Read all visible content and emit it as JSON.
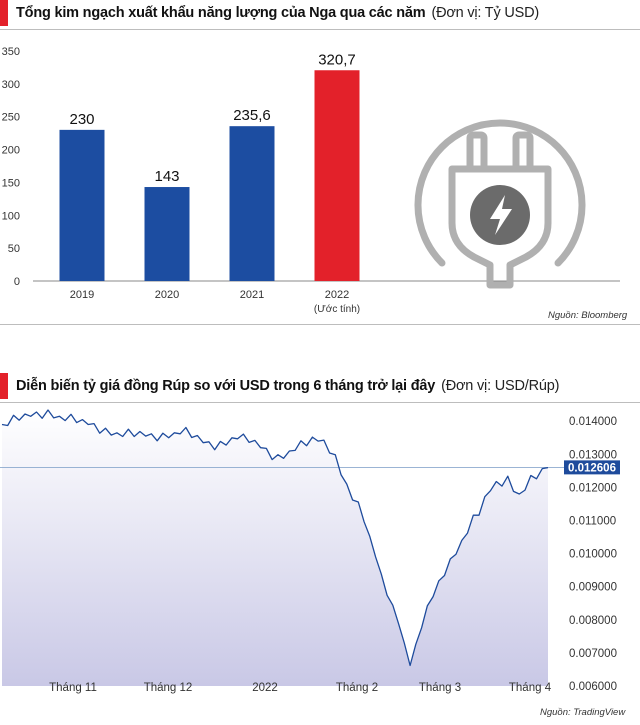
{
  "chart_data": [
    {
      "type": "bar",
      "title": "Tổng kim ngạch xuất khẩu năng lượng của Nga qua các năm",
      "unit": "(Đơn vị: Tỷ USD)",
      "categories": [
        "2019",
        "2020",
        "2021",
        "2022"
      ],
      "category_notes": [
        "",
        "",
        "",
        "(Ước tính)"
      ],
      "values": [
        230,
        143,
        235.6,
        320.7
      ],
      "value_labels": [
        "230",
        "143",
        "235,6",
        "320,7"
      ],
      "yticks": [
        "0",
        "50",
        "100",
        "150",
        "200",
        "250",
        "300",
        "350"
      ],
      "ylim": [
        0,
        350
      ],
      "grid": false,
      "colors": [
        "#1c4da1",
        "#1c4da1",
        "#1c4da1",
        "#e3212a"
      ],
      "source": "Nguồn: Bloomberg",
      "icon": "power-plug-icon"
    },
    {
      "type": "area",
      "title": "Diễn biến tỷ giá đồng Rúp so với USD trong 6 tháng trở lại đây",
      "unit": "(Đơn vị: USD/Rúp)",
      "x_labels": [
        "Tháng 11",
        "Tháng 12",
        "2022",
        "Tháng 2",
        "Tháng 3",
        "Tháng 4"
      ],
      "yticks": [
        "0.014000",
        "0.013000",
        "0.012000",
        "0.011000",
        "0.010000",
        "0.009000",
        "0.008000",
        "0.007000",
        "0.006000"
      ],
      "ylim": [
        0.006,
        0.0144
      ],
      "current_value": 0.012606,
      "current_label": "0.012606",
      "series": [
        {
          "values": [
            0.0139,
            0.01395,
            0.01402,
            0.01407,
            0.0141,
            0.01415,
            0.0142,
            0.01425,
            0.0143,
            0.01422,
            0.01415,
            0.0141,
            0.01405,
            0.014,
            0.01393,
            0.0139,
            0.01385,
            0.0138,
            0.01375,
            0.0137,
            0.01365,
            0.01362,
            0.0136,
            0.01358,
            0.01357,
            0.01355,
            0.01354,
            0.01357,
            0.0136,
            0.01362,
            0.01365,
            0.0137,
            0.01365,
            0.01355,
            0.01345,
            0.01335,
            0.0133,
            0.0133,
            0.01335,
            0.0134,
            0.0135,
            0.01355,
            0.01345,
            0.0134,
            0.0133,
            0.0132,
            0.0131,
            0.013,
            0.01295,
            0.013,
            0.0131,
            0.0132,
            0.01325,
            0.0133,
            0.0134,
            0.0134,
            0.01335,
            0.0132,
            0.01295,
            0.0125,
            0.0121,
            0.0117,
            0.0114,
            0.011,
            0.0104,
            0.0099,
            0.0093,
            0.0089,
            0.0084,
            0.008,
            0.0073,
            0.0067,
            0.0071,
            0.0078,
            0.0083,
            0.0087,
            0.0091,
            0.0095,
            0.0098,
            0.0101,
            0.0104,
            0.0107,
            0.011,
            0.0112,
            0.0116,
            0.0119,
            0.0121,
            0.0122,
            0.0123,
            0.012,
            0.0118,
            0.012,
            0.0122,
            0.0123,
            0.01245,
            0.0126
          ]
        }
      ],
      "source": "Nguồn: TradingView"
    }
  ]
}
